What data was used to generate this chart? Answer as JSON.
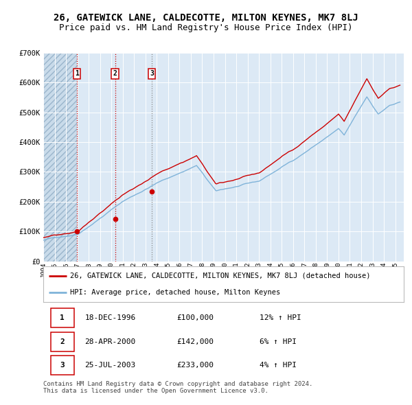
{
  "title": "26, GATEWICK LANE, CALDECOTTE, MILTON KEYNES, MK7 8LJ",
  "subtitle": "Price paid vs. HM Land Registry's House Price Index (HPI)",
  "background_color": "#dce9f5",
  "plot_bg_color": "#dce9f5",
  "hatch_color": "#b8cfe0",
  "grid_color": "#ffffff",
  "red_line_color": "#cc0000",
  "blue_line_color": "#7fb3d9",
  "ylim": [
    0,
    700000
  ],
  "yticks": [
    0,
    100000,
    200000,
    300000,
    400000,
    500000,
    600000,
    700000
  ],
  "xlim_start": 1994.0,
  "xlim_end": 2025.75,
  "xticks": [
    1994,
    1995,
    1996,
    1997,
    1998,
    1999,
    2000,
    2001,
    2002,
    2003,
    2004,
    2005,
    2006,
    2007,
    2008,
    2009,
    2010,
    2011,
    2012,
    2013,
    2014,
    2015,
    2016,
    2017,
    2018,
    2019,
    2020,
    2021,
    2022,
    2023,
    2024,
    2025
  ],
  "sale_dates": [
    1996.96,
    2000.32,
    2003.56
  ],
  "sale_prices": [
    100000,
    142000,
    233000
  ],
  "sale_labels": [
    "1",
    "2",
    "3"
  ],
  "sale_date_strings": [
    "18-DEC-1996",
    "28-APR-2000",
    "25-JUL-2003"
  ],
  "sale_price_strings": [
    "£100,000",
    "£142,000",
    "£233,000"
  ],
  "sale_hpi_strings": [
    "12% ↑ HPI",
    "6% ↑ HPI",
    "4% ↑ HPI"
  ],
  "legend_label_red": "26, GATEWICK LANE, CALDECOTTE, MILTON KEYNES, MK7 8LJ (detached house)",
  "legend_label_blue": "HPI: Average price, detached house, Milton Keynes",
  "footer_text": "Contains HM Land Registry data © Crown copyright and database right 2024.\nThis data is licensed under the Open Government Licence v3.0.",
  "title_fontsize": 10,
  "subtitle_fontsize": 9,
  "legend_fontsize": 7.5,
  "table_fontsize": 8,
  "footer_fontsize": 6.5
}
